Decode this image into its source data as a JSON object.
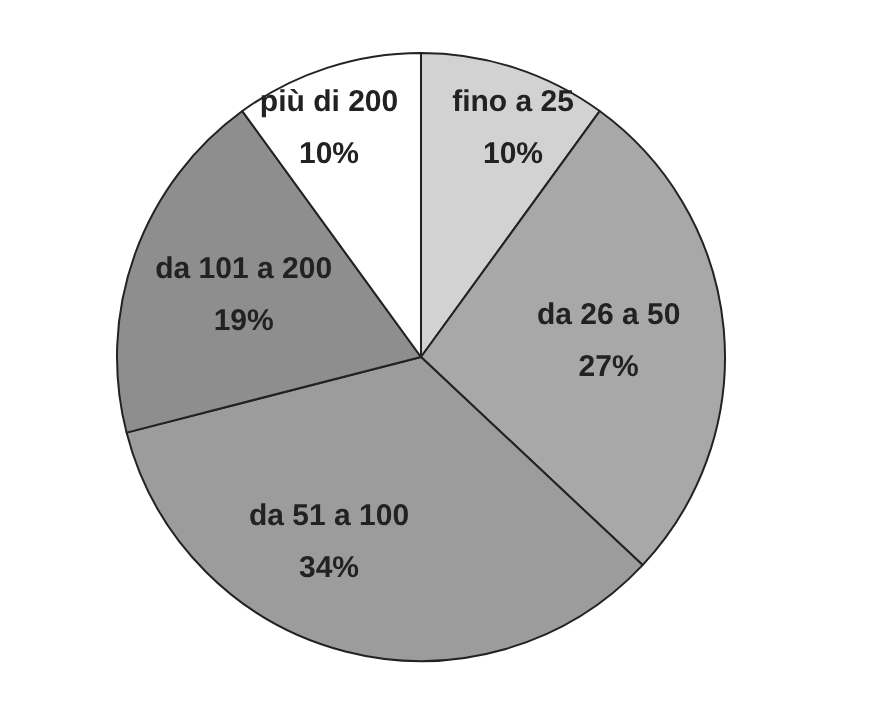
{
  "chart_data": {
    "type": "pie",
    "categories": [
      "fino a 25",
      "da 26 a 50",
      "da 51 a 100",
      "da 101 a 200",
      "più di 200"
    ],
    "values": [
      10,
      27,
      34,
      19,
      10
    ],
    "value_labels": [
      "10%",
      "27%",
      "34%",
      "19%",
      "10%"
    ],
    "colors": [
      "#d2d2d2",
      "#a8a8a8",
      "#9c9c9c",
      "#8e8e8e",
      "#ffffff"
    ]
  }
}
